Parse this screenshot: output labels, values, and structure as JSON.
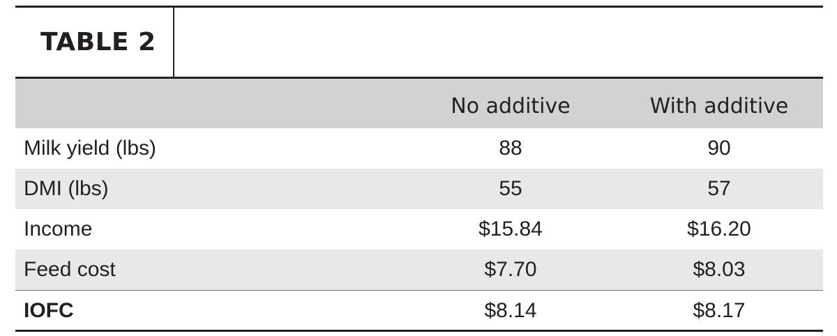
{
  "title": "TABLE 2",
  "columns": [
    "",
    "No additive",
    "With additive"
  ],
  "rows": [
    {
      "label": "Milk yield (lbs)",
      "no_additive": "88",
      "with_additive": "90"
    },
    {
      "label": "DMI (lbs)",
      "no_additive": "55",
      "with_additive": "57"
    },
    {
      "label": "Income",
      "no_additive": "$15.84",
      "with_additive": "$16.20"
    },
    {
      "label": "Feed cost",
      "no_additive": "$7.70",
      "with_additive": "$8.03"
    },
    {
      "label": "IOFC",
      "no_additive": "$8.14",
      "with_additive": "$8.17"
    }
  ],
  "colors": {
    "header_fill": "#d1d2d4",
    "stripe_fill": "#e7e8e9",
    "rule": "#231f20"
  }
}
